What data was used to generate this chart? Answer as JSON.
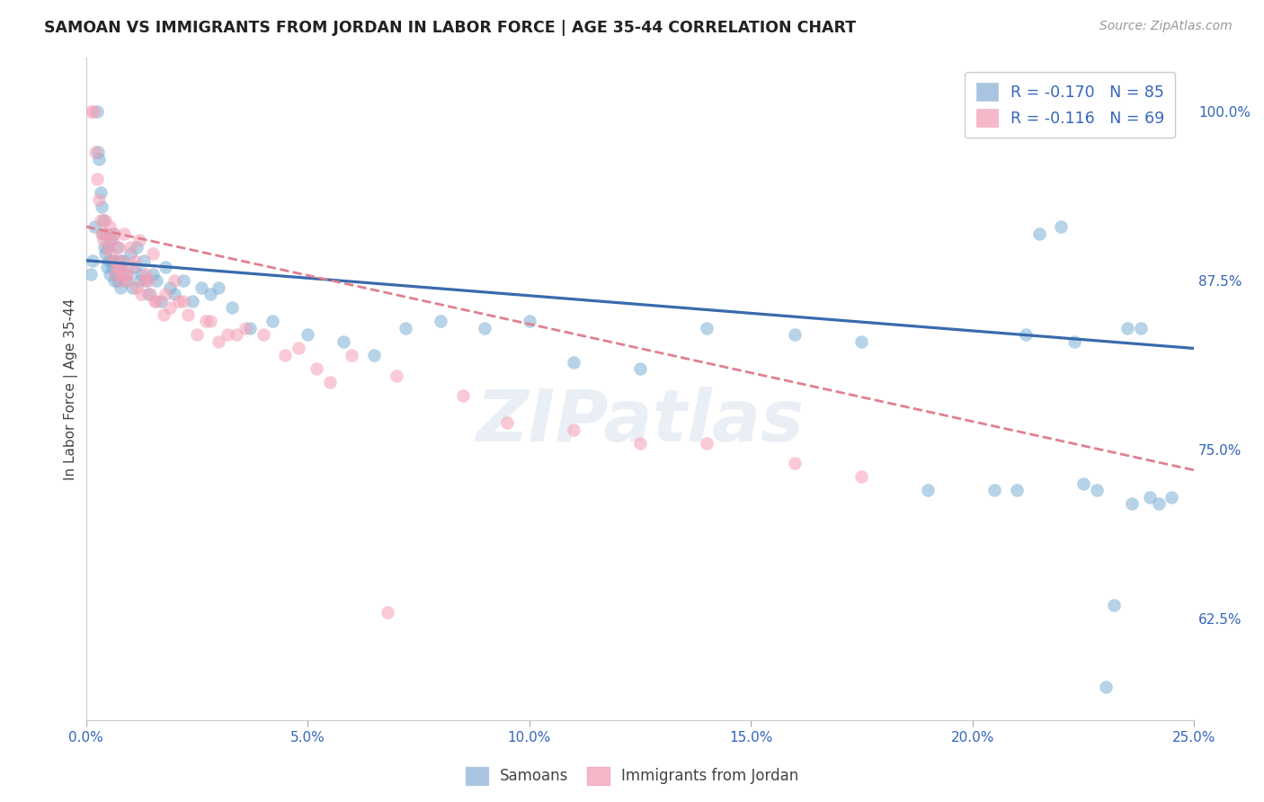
{
  "title": "SAMOAN VS IMMIGRANTS FROM JORDAN IN LABOR FORCE | AGE 35-44 CORRELATION CHART",
  "source": "Source: ZipAtlas.com",
  "ylabel": "In Labor Force | Age 35-44",
  "x_tick_labels": [
    "0.0%",
    "5.0%",
    "10.0%",
    "15.0%",
    "20.0%",
    "25.0%"
  ],
  "x_tick_values": [
    0.0,
    5.0,
    10.0,
    15.0,
    20.0,
    25.0
  ],
  "y_tick_labels": [
    "62.5%",
    "75.0%",
    "87.5%",
    "100.0%"
  ],
  "y_tick_values": [
    62.5,
    75.0,
    87.5,
    100.0
  ],
  "xlim": [
    0.0,
    25.0
  ],
  "ylim": [
    55.0,
    104.0
  ],
  "blue_color": "#7bafd4",
  "pink_color": "#f5a0b5",
  "blue_line_color": "#3a6aad",
  "pink_line_color": "#e08090",
  "background_color": "#ffffff",
  "watermark": "ZIPatlas",
  "samoans_x": [
    0.1,
    0.15,
    0.2,
    0.25,
    0.28,
    0.3,
    0.33,
    0.36,
    0.38,
    0.4,
    0.42,
    0.44,
    0.46,
    0.48,
    0.5,
    0.52,
    0.54,
    0.56,
    0.58,
    0.6,
    0.62,
    0.64,
    0.66,
    0.68,
    0.7,
    0.72,
    0.74,
    0.76,
    0.78,
    0.8,
    0.85,
    0.9,
    0.95,
    1.0,
    1.05,
    1.1,
    1.15,
    1.2,
    1.25,
    1.3,
    1.35,
    1.4,
    1.5,
    1.6,
    1.7,
    1.8,
    1.9,
    2.0,
    2.2,
    2.4,
    2.6,
    2.8,
    3.0,
    3.3,
    3.7,
    4.2,
    5.0,
    5.8,
    6.5,
    7.2,
    8.0,
    9.0,
    10.0,
    11.0,
    12.5,
    14.0,
    16.0,
    17.5,
    19.0,
    20.5,
    21.0,
    21.5,
    22.0,
    22.5,
    22.8,
    23.0,
    23.2,
    23.5,
    24.0,
    24.5,
    21.2,
    22.3,
    23.8,
    24.2,
    23.6
  ],
  "samoans_y": [
    88.0,
    89.0,
    91.5,
    100.0,
    97.0,
    96.5,
    94.0,
    93.0,
    91.0,
    92.0,
    90.0,
    89.5,
    91.0,
    88.5,
    90.0,
    89.0,
    88.0,
    90.5,
    89.0,
    88.5,
    91.0,
    87.5,
    89.0,
    88.0,
    90.0,
    87.5,
    88.5,
    89.0,
    87.0,
    88.5,
    89.0,
    87.5,
    88.0,
    89.5,
    87.0,
    88.5,
    90.0,
    87.5,
    88.0,
    89.0,
    87.5,
    86.5,
    88.0,
    87.5,
    86.0,
    88.5,
    87.0,
    86.5,
    87.5,
    86.0,
    87.0,
    86.5,
    87.0,
    85.5,
    84.0,
    84.5,
    83.5,
    83.0,
    82.0,
    84.0,
    84.5,
    84.0,
    84.5,
    81.5,
    81.0,
    84.0,
    83.5,
    83.0,
    72.0,
    72.0,
    72.0,
    91.0,
    91.5,
    72.5,
    72.0,
    57.5,
    63.5,
    84.0,
    71.5,
    71.5,
    83.5,
    83.0,
    84.0,
    71.0,
    71.0
  ],
  "jordan_x": [
    0.12,
    0.18,
    0.22,
    0.26,
    0.3,
    0.33,
    0.36,
    0.4,
    0.43,
    0.46,
    0.5,
    0.53,
    0.56,
    0.6,
    0.63,
    0.66,
    0.7,
    0.74,
    0.78,
    0.82,
    0.86,
    0.9,
    0.95,
    1.0,
    1.05,
    1.1,
    1.15,
    1.2,
    1.25,
    1.35,
    1.4,
    1.5,
    1.6,
    1.75,
    1.9,
    2.1,
    2.3,
    2.5,
    2.8,
    3.2,
    3.6,
    4.0,
    4.5,
    5.2,
    6.0,
    7.0,
    8.5,
    9.5,
    11.0,
    12.5,
    14.0,
    16.0,
    17.5,
    2.2,
    3.0,
    0.65,
    0.75,
    1.3,
    1.8,
    2.0,
    0.85,
    1.55,
    1.45,
    2.7,
    3.4,
    4.8,
    5.5,
    6.8
  ],
  "jordan_y": [
    100.0,
    100.0,
    97.0,
    95.0,
    93.5,
    92.0,
    91.0,
    90.5,
    92.0,
    91.0,
    90.0,
    91.5,
    89.5,
    90.5,
    91.0,
    89.0,
    88.5,
    90.0,
    87.5,
    89.0,
    91.0,
    88.0,
    87.5,
    90.0,
    88.5,
    89.0,
    87.0,
    90.5,
    86.5,
    88.0,
    87.5,
    89.5,
    86.0,
    85.0,
    85.5,
    86.0,
    85.0,
    83.5,
    84.5,
    83.5,
    84.0,
    83.5,
    82.0,
    81.0,
    82.0,
    80.5,
    79.0,
    77.0,
    76.5,
    75.5,
    75.5,
    74.0,
    73.0,
    86.0,
    83.0,
    88.0,
    88.5,
    87.5,
    86.5,
    87.5,
    88.0,
    86.0,
    86.5,
    84.5,
    83.5,
    82.5,
    80.0,
    63.0
  ],
  "blue_intercept": 89.0,
  "blue_slope": -0.26,
  "pink_intercept": 91.5,
  "pink_slope": -0.72
}
